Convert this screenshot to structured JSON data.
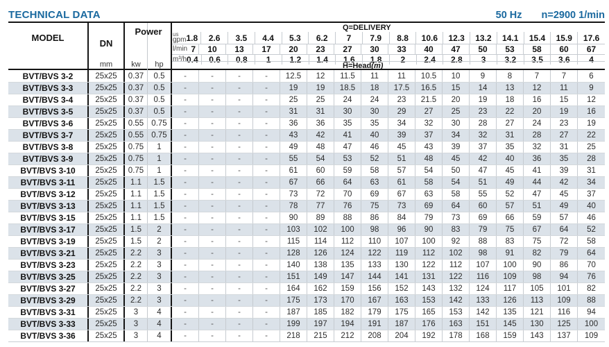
{
  "page": {
    "title": "TECHNICAL DATA",
    "frequency": "50 Hz",
    "speed": "n=2900 1/min"
  },
  "table": {
    "headers": {
      "model": "MODEL",
      "dn": "DN",
      "dn_unit": "mm",
      "power": "Power",
      "kw_unit": "kw",
      "hp_unit": "hp",
      "delivery_label": "Q=DELIVERY",
      "head_label": "H=Head",
      "head_unit": "(m)",
      "unit_rows": [
        {
          "label_top": "us",
          "label": "gpm",
          "values": [
            "1.8",
            "2.6",
            "3.5",
            "4.4",
            "5.3",
            "6.2",
            "7",
            "7.9",
            "8.8",
            "10.6",
            "12.3",
            "13.2",
            "14.1",
            "15.4",
            "15.9",
            "17.6"
          ]
        },
        {
          "label": "l/min",
          "values": [
            "7",
            "10",
            "13",
            "17",
            "20",
            "23",
            "27",
            "30",
            "33",
            "40",
            "47",
            "50",
            "53",
            "58",
            "60",
            "67"
          ]
        },
        {
          "label": "m³/h",
          "values": [
            "0.4",
            "0.6",
            "0.8",
            "1",
            "1.2",
            "1.4",
            "1.6",
            "1.8",
            "2",
            "2.4",
            "2.8",
            "3",
            "3.2",
            "3.5",
            "3.6",
            "4"
          ]
        }
      ]
    },
    "rows": [
      {
        "model": "BVT/BVS 3-2",
        "dn": "25x25",
        "kw": "0.37",
        "hp": "0.5",
        "heads": [
          "-",
          "-",
          "-",
          "-",
          "12.5",
          "12",
          "11.5",
          "11",
          "11",
          "10.5",
          "10",
          "9",
          "8",
          "7",
          "7",
          "6"
        ]
      },
      {
        "model": "BVT/BVS 3-3",
        "dn": "25x25",
        "kw": "0.37",
        "hp": "0.5",
        "heads": [
          "-",
          "-",
          "-",
          "-",
          "19",
          "19",
          "18.5",
          "18",
          "17.5",
          "16.5",
          "15",
          "14",
          "13",
          "12",
          "11",
          "9"
        ]
      },
      {
        "model": "BVT/BVS 3-4",
        "dn": "25x25",
        "kw": "0.37",
        "hp": "0.5",
        "heads": [
          "-",
          "-",
          "-",
          "-",
          "25",
          "25",
          "24",
          "24",
          "23",
          "21.5",
          "20",
          "19",
          "18",
          "16",
          "15",
          "12"
        ]
      },
      {
        "model": "BVT/BVS 3-5",
        "dn": "25x25",
        "kw": "0.37",
        "hp": "0.5",
        "heads": [
          "-",
          "-",
          "-",
          "-",
          "31",
          "31",
          "30",
          "30",
          "29",
          "27",
          "25",
          "23",
          "22",
          "20",
          "19",
          "16"
        ]
      },
      {
        "model": "BVT/BVS 3-6",
        "dn": "25x25",
        "kw": "0.55",
        "hp": "0.75",
        "heads": [
          "-",
          "-",
          "-",
          "-",
          "36",
          "36",
          "35",
          "35",
          "34",
          "32",
          "30",
          "28",
          "27",
          "24",
          "23",
          "19"
        ]
      },
      {
        "model": "BVT/BVS 3-7",
        "dn": "25x25",
        "kw": "0.55",
        "hp": "0.75",
        "heads": [
          "-",
          "-",
          "-",
          "-",
          "43",
          "42",
          "41",
          "40",
          "39",
          "37",
          "34",
          "32",
          "31",
          "28",
          "27",
          "22"
        ]
      },
      {
        "model": "BVT/BVS 3-8",
        "dn": "25x25",
        "kw": "0.75",
        "hp": "1",
        "heads": [
          "-",
          "-",
          "-",
          "-",
          "49",
          "48",
          "47",
          "46",
          "45",
          "43",
          "39",
          "37",
          "35",
          "32",
          "31",
          "25"
        ]
      },
      {
        "model": "BVT/BVS 3-9",
        "dn": "25x25",
        "kw": "0.75",
        "hp": "1",
        "heads": [
          "-",
          "-",
          "-",
          "-",
          "55",
          "54",
          "53",
          "52",
          "51",
          "48",
          "45",
          "42",
          "40",
          "36",
          "35",
          "28"
        ]
      },
      {
        "model": "BVT/BVS 3-10",
        "dn": "25x25",
        "kw": "0.75",
        "hp": "1",
        "heads": [
          "-",
          "-",
          "-",
          "-",
          "61",
          "60",
          "59",
          "58",
          "57",
          "54",
          "50",
          "47",
          "45",
          "41",
          "39",
          "31"
        ]
      },
      {
        "model": "BVT/BVS 3-11",
        "dn": "25x25",
        "kw": "1.1",
        "hp": "1.5",
        "heads": [
          "-",
          "-",
          "-",
          "-",
          "67",
          "66",
          "64",
          "63",
          "61",
          "58",
          "54",
          "51",
          "49",
          "44",
          "42",
          "34"
        ]
      },
      {
        "model": "BVT/BVS 3-12",
        "dn": "25x25",
        "kw": "1.1",
        "hp": "1.5",
        "heads": [
          "-",
          "-",
          "-",
          "-",
          "73",
          "72",
          "70",
          "69",
          "67",
          "63",
          "58",
          "55",
          "52",
          "47",
          "45",
          "37"
        ]
      },
      {
        "model": "BVT/BVS 3-13",
        "dn": "25x25",
        "kw": "1.1",
        "hp": "1.5",
        "heads": [
          "-",
          "-",
          "-",
          "-",
          "78",
          "77",
          "76",
          "75",
          "73",
          "69",
          "64",
          "60",
          "57",
          "51",
          "49",
          "40"
        ]
      },
      {
        "model": "BVT/BVS 3-15",
        "dn": "25x25",
        "kw": "1.1",
        "hp": "1.5",
        "heads": [
          "-",
          "-",
          "-",
          "-",
          "90",
          "89",
          "88",
          "86",
          "84",
          "79",
          "73",
          "69",
          "66",
          "59",
          "57",
          "46"
        ]
      },
      {
        "model": "BVT/BVS 3-17",
        "dn": "25x25",
        "kw": "1.5",
        "hp": "2",
        "heads": [
          "-",
          "-",
          "-",
          "-",
          "103",
          "102",
          "100",
          "98",
          "96",
          "90",
          "83",
          "79",
          "75",
          "67",
          "64",
          "52"
        ]
      },
      {
        "model": "BVT/BVS 3-19",
        "dn": "25x25",
        "kw": "1.5",
        "hp": "2",
        "heads": [
          "-",
          "-",
          "-",
          "-",
          "115",
          "114",
          "112",
          "110",
          "107",
          "100",
          "92",
          "88",
          "83",
          "75",
          "72",
          "58"
        ]
      },
      {
        "model": "BVT/BVS 3-21",
        "dn": "25x25",
        "kw": "2.2",
        "hp": "3",
        "heads": [
          "-",
          "-",
          "-",
          "-",
          "128",
          "126",
          "124",
          "122",
          "119",
          "112",
          "102",
          "98",
          "91",
          "82",
          "79",
          "64"
        ]
      },
      {
        "model": "BVT/BVS 3-23",
        "dn": "25x25",
        "kw": "2.2",
        "hp": "3",
        "heads": [
          "-",
          "-",
          "-",
          "-",
          "140",
          "138",
          "135",
          "133",
          "130",
          "122",
          "112",
          "107",
          "100",
          "90",
          "86",
          "70"
        ]
      },
      {
        "model": "BVT/BVS 3-25",
        "dn": "25x25",
        "kw": "2.2",
        "hp": "3",
        "heads": [
          "-",
          "-",
          "-",
          "-",
          "151",
          "149",
          "147",
          "144",
          "141",
          "131",
          "122",
          "116",
          "109",
          "98",
          "94",
          "76"
        ]
      },
      {
        "model": "BVT/BVS 3-27",
        "dn": "25x25",
        "kw": "2.2",
        "hp": "3",
        "heads": [
          "-",
          "-",
          "-",
          "-",
          "164",
          "162",
          "159",
          "156",
          "152",
          "143",
          "132",
          "124",
          "117",
          "105",
          "101",
          "82"
        ]
      },
      {
        "model": "BVT/BVS 3-29",
        "dn": "25x25",
        "kw": "2.2",
        "hp": "3",
        "heads": [
          "-",
          "-",
          "-",
          "-",
          "175",
          "173",
          "170",
          "167",
          "163",
          "153",
          "142",
          "133",
          "126",
          "113",
          "109",
          "88"
        ]
      },
      {
        "model": "BVT/BVS 3-31",
        "dn": "25x25",
        "kw": "3",
        "hp": "4",
        "heads": [
          "-",
          "-",
          "-",
          "-",
          "187",
          "185",
          "182",
          "179",
          "175",
          "165",
          "153",
          "142",
          "135",
          "121",
          "116",
          "94"
        ]
      },
      {
        "model": "BVT/BVS 3-33",
        "dn": "25x25",
        "kw": "3",
        "hp": "4",
        "heads": [
          "-",
          "-",
          "-",
          "-",
          "199",
          "197",
          "194",
          "191",
          "187",
          "176",
          "163",
          "151",
          "145",
          "130",
          "125",
          "100"
        ]
      },
      {
        "model": "BVT/BVS 3-36",
        "dn": "25x25",
        "kw": "3",
        "hp": "4",
        "heads": [
          "-",
          "-",
          "-",
          "-",
          "218",
          "215",
          "212",
          "208",
          "204",
          "192",
          "178",
          "168",
          "159",
          "143",
          "137",
          "109"
        ]
      }
    ]
  }
}
